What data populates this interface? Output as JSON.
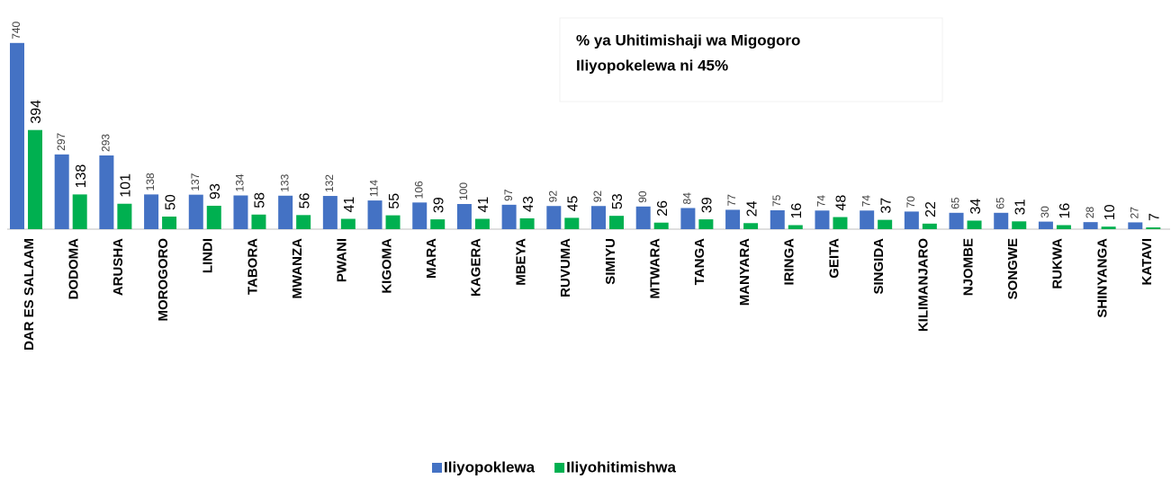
{
  "chart_data": {
    "type": "bar",
    "annotation": [
      "% ya Uhitimishaji wa Migogoro",
      "Iliyopokelewa ni 45%"
    ],
    "categories": [
      "DAR ES SALAAM",
      "DODOMA",
      "ARUSHA",
      "MOROGORO",
      "LINDI",
      "TABORA",
      "MWANZA",
      "PWANI",
      "KIGOMA",
      "MARA",
      "KAGERA",
      "MBEYA",
      "RUVUMA",
      "SIMIYU",
      "MTWARA",
      "TANGA",
      "MANYARA",
      "IRINGA",
      "GEITA",
      "SINGIDA",
      "KILIMANJARO",
      "NJOMBE",
      "SONGWE",
      "RUKWA",
      "SHINYANGA",
      "KATAVI"
    ],
    "series": [
      {
        "name": "Iliyopoklewa",
        "color": "#4472c4",
        "values": [
          740,
          297,
          293,
          138,
          137,
          134,
          133,
          132,
          114,
          106,
          100,
          97,
          92,
          92,
          90,
          84,
          77,
          75,
          74,
          74,
          70,
          65,
          65,
          30,
          28,
          27
        ]
      },
      {
        "name": "Iliyohitimishwa",
        "color": "#00b050",
        "values": [
          394,
          138,
          101,
          50,
          93,
          58,
          56,
          41,
          55,
          39,
          41,
          43,
          45,
          53,
          26,
          39,
          24,
          16,
          48,
          37,
          22,
          34,
          31,
          16,
          10,
          7
        ]
      }
    ],
    "ylim": [
      0,
      800
    ],
    "legend": "bottom"
  }
}
